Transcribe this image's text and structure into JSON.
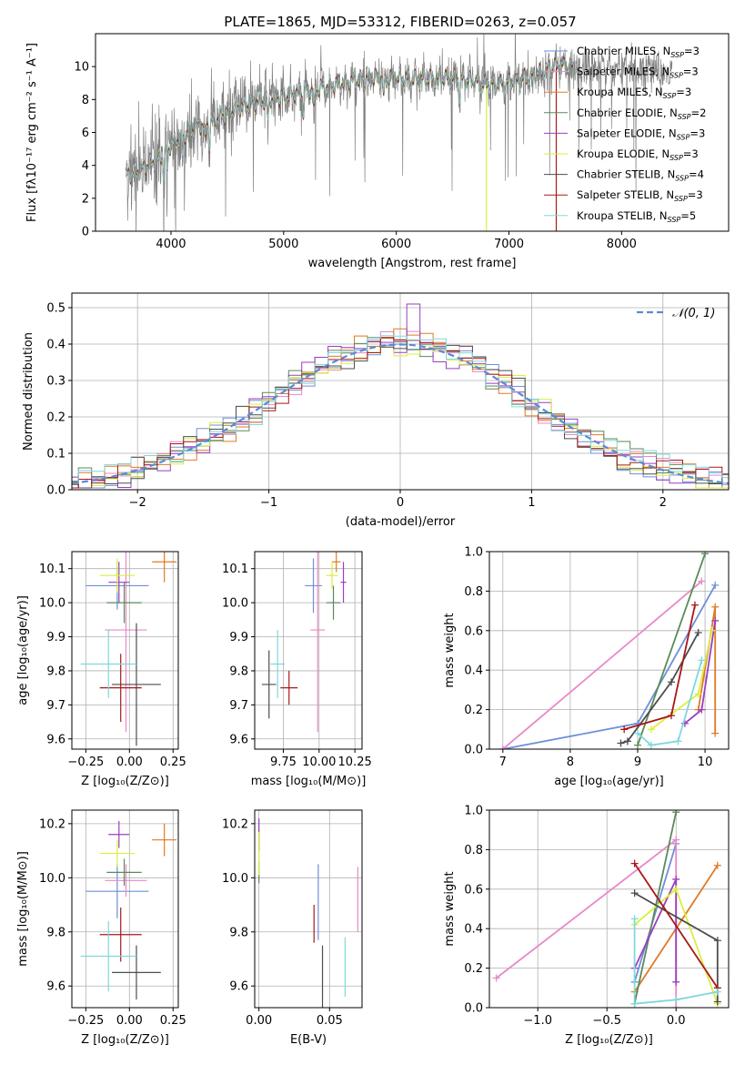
{
  "figure_title": "PLATE=1865, MJD=53312, FIBERID=0263, z=0.057",
  "colors": {
    "chabrier_miles": "#6f8fd8",
    "salpeter_miles": "#e889c7",
    "kroupa_miles": "#e07a25",
    "chabrier_elodie": "#5a8a5a",
    "salpeter_elodie": "#9a3fbf",
    "kroupa_elodie": "#d8ef3f",
    "chabrier_stelib": "#4d4d4d",
    "salpeter_stelib": "#a81818",
    "kroupa_stelib": "#7fd8dc",
    "data": "#808080",
    "gauss": "#5a8ad6",
    "grid": "#b0b0b0"
  },
  "legend_entries": [
    {
      "key": "chabrier_miles",
      "prefix": "Chabrier MILES, N",
      "sub": "SSP",
      "suffix": "=3"
    },
    {
      "key": "salpeter_miles",
      "prefix": "Salpeter MILES, N",
      "sub": "SSP",
      "suffix": "=3"
    },
    {
      "key": "kroupa_miles",
      "prefix": "Kroupa MILES, N",
      "sub": "SSP",
      "suffix": "=3"
    },
    {
      "key": "chabrier_elodie",
      "prefix": "Chabrier ELODIE, N",
      "sub": "SSP",
      "suffix": "=2"
    },
    {
      "key": "salpeter_elodie",
      "prefix": "Salpeter ELODIE, N",
      "sub": "SSP",
      "suffix": "=3"
    },
    {
      "key": "kroupa_elodie",
      "prefix": "Kroupa ELODIE, N",
      "sub": "SSP",
      "suffix": "=3"
    },
    {
      "key": "chabrier_stelib",
      "prefix": "Chabrier STELIB, N",
      "sub": "SSP",
      "suffix": "=4"
    },
    {
      "key": "salpeter_stelib",
      "prefix": "Salpeter STELIB, N",
      "sub": "SSP",
      "suffix": "=3"
    },
    {
      "key": "kroupa_stelib",
      "prefix": "Kroupa STELIB, N",
      "sub": "SSP",
      "suffix": "=5"
    }
  ],
  "chart_data": [
    {
      "id": "spectrum",
      "type": "line",
      "xlabel": "wavelength [Angstrom, rest frame]",
      "ylabel": "Flux [fλ10⁻¹⁷ erg cm⁻² s⁻¹ A⁻¹]",
      "xlim": [
        3330,
        8950
      ],
      "ylim": [
        0,
        12
      ],
      "xticks": [
        4000,
        5000,
        6000,
        7000,
        8000
      ],
      "yticks": [
        0,
        2,
        4,
        6,
        8,
        10
      ],
      "grid": false,
      "legend": "upper-right",
      "continuum": [
        [
          3600,
          3.4
        ],
        [
          3700,
          3.6
        ],
        [
          3800,
          4.0
        ],
        [
          3900,
          4.4
        ],
        [
          4000,
          5.3
        ],
        [
          4200,
          6.2
        ],
        [
          4400,
          6.8
        ],
        [
          4600,
          7.5
        ],
        [
          4800,
          7.9
        ],
        [
          5000,
          8.2
        ],
        [
          5200,
          8.5
        ],
        [
          5400,
          8.8
        ],
        [
          5600,
          9.1
        ],
        [
          5800,
          9.3
        ],
        [
          6000,
          9.3
        ],
        [
          6200,
          9.2
        ],
        [
          6400,
          9.3
        ],
        [
          6600,
          9.2
        ],
        [
          6800,
          8.9
        ],
        [
          7000,
          9.0
        ],
        [
          7200,
          9.4
        ],
        [
          7400,
          10.0
        ],
        [
          7600,
          10.0
        ],
        [
          7800,
          9.8
        ],
        [
          8000,
          9.8
        ],
        [
          8200,
          9.9
        ],
        [
          8400,
          9.6
        ],
        [
          8500,
          9.7
        ]
      ],
      "data_range": [
        3600,
        8450
      ],
      "model_range": [
        3600,
        7600
      ]
    },
    {
      "id": "residuals",
      "type": "histogram",
      "xlabel": "(data-model)/error",
      "ylabel": "Normed distribution",
      "xlim": [
        -2.5,
        2.5
      ],
      "ylim": [
        0,
        0.54
      ],
      "xticks": [
        -2,
        -1,
        0,
        1,
        2
      ],
      "yticks": [
        0.0,
        0.1,
        0.2,
        0.3,
        0.4,
        0.5
      ],
      "grid": true,
      "legend": "upper-right",
      "gauss_label": "𝒩(0, 1)",
      "bin_width": 0.1,
      "peak_bin": {
        "center": 0.15,
        "value": 0.51
      }
    },
    {
      "id": "age_vs_Z",
      "type": "errorbar",
      "xlabel": "Z [log₁₀(Z/Z⊙)]",
      "ylabel": "age  [log₁₀(age/yr)]",
      "xlim": [
        -0.33,
        0.28
      ],
      "ylim": [
        9.57,
        10.15
      ],
      "xticks": [
        -0.25,
        0.0,
        0.25
      ],
      "xticklabels": [
        "−0.25",
        "0.00",
        "0.25"
      ],
      "yticks": [
        9.6,
        9.7,
        9.8,
        9.9,
        10.0,
        10.1
      ],
      "grid": true,
      "points": [
        {
          "key": "chabrier_miles",
          "x": -0.07,
          "xerr": 0.18,
          "y": 10.05,
          "yerr": 0.07
        },
        {
          "key": "salpeter_miles",
          "x": -0.02,
          "xerr": 0.12,
          "y": 9.92,
          "yerr": 0.3
        },
        {
          "key": "kroupa_miles",
          "x": 0.2,
          "xerr": 0.07,
          "y": 10.12,
          "yerr": 0.06
        },
        {
          "key": "chabrier_elodie",
          "x": -0.03,
          "xerr": 0.1,
          "y": 10.0,
          "yerr": 0.06
        },
        {
          "key": "salpeter_elodie",
          "x": -0.06,
          "xerr": 0.06,
          "y": 10.06,
          "yerr": 0.06
        },
        {
          "key": "kroupa_elodie",
          "x": -0.07,
          "xerr": 0.1,
          "y": 10.08,
          "yerr": 0.05
        },
        {
          "key": "chabrier_stelib",
          "x": 0.04,
          "xerr": 0.14,
          "y": 9.76,
          "yerr": 0.18
        },
        {
          "key": "salpeter_stelib",
          "x": -0.05,
          "xerr": 0.12,
          "y": 9.75,
          "yerr": 0.1
        },
        {
          "key": "kroupa_stelib",
          "x": -0.12,
          "xerr": 0.16,
          "y": 9.82,
          "yerr": 0.1
        }
      ]
    },
    {
      "id": "age_vs_mass",
      "type": "errorbar",
      "xlabel": "mass [log₁₀(M/M⊙)]",
      "ylabel": "",
      "xlim": [
        9.55,
        10.3
      ],
      "ylim": [
        9.57,
        10.15
      ],
      "xticks": [
        9.75,
        10.0,
        10.25
      ],
      "xticklabels": [
        "9.75",
        "10.00",
        "10.25"
      ],
      "yticks": [
        9.6,
        9.7,
        9.8,
        9.9,
        10.0,
        10.1
      ],
      "grid": true,
      "points": [
        {
          "key": "chabrier_miles",
          "x": 9.96,
          "xerr": 0.06,
          "y": 10.05,
          "yerr": 0.08
        },
        {
          "key": "salpeter_miles",
          "x": 9.99,
          "xerr": 0.05,
          "y": 9.92,
          "yerr": 0.3
        },
        {
          "key": "kroupa_miles",
          "x": 10.12,
          "xerr": 0.03,
          "y": 10.12,
          "yerr": 0.03
        },
        {
          "key": "chabrier_elodie",
          "x": 10.1,
          "xerr": 0.05,
          "y": 10.0,
          "yerr": 0.05
        },
        {
          "key": "salpeter_elodie",
          "x": 10.17,
          "xerr": 0.02,
          "y": 10.06,
          "yerr": 0.06
        },
        {
          "key": "kroupa_elodie",
          "x": 10.09,
          "xerr": 0.04,
          "y": 10.08,
          "yerr": 0.04
        },
        {
          "key": "chabrier_stelib",
          "x": 9.65,
          "xerr": 0.05,
          "y": 9.76,
          "yerr": 0.1
        },
        {
          "key": "salpeter_stelib",
          "x": 9.79,
          "xerr": 0.06,
          "y": 9.75,
          "yerr": 0.05
        },
        {
          "key": "kroupa_stelib",
          "x": 9.71,
          "xerr": 0.05,
          "y": 9.82,
          "yerr": 0.1
        }
      ]
    },
    {
      "id": "weight_vs_age",
      "type": "line",
      "xlabel": "age  [log₁₀(age/yr)]",
      "ylabel": "mass weight",
      "xlim": [
        6.8,
        10.35
      ],
      "ylim": [
        0,
        1.0
      ],
      "xticks": [
        7,
        8,
        9,
        10
      ],
      "yticks": [
        0.0,
        0.2,
        0.4,
        0.6,
        0.8,
        1.0
      ],
      "grid": true,
      "series": [
        {
          "key": "chabrier_miles",
          "points": [
            [
              7.0,
              0.0
            ],
            [
              9.0,
              0.13
            ],
            [
              10.15,
              0.83
            ]
          ]
        },
        {
          "key": "salpeter_miles",
          "points": [
            [
              7.0,
              0.0
            ],
            [
              9.95,
              0.85
            ]
          ]
        },
        {
          "key": "kroupa_miles",
          "points": [
            [
              9.9,
              0.2
            ],
            [
              10.15,
              0.72
            ],
            [
              10.15,
              0.08
            ]
          ]
        },
        {
          "key": "chabrier_elodie",
          "points": [
            [
              9.0,
              0.02
            ],
            [
              10.0,
              0.99
            ]
          ]
        },
        {
          "key": "salpeter_elodie",
          "points": [
            [
              9.7,
              0.13
            ],
            [
              9.95,
              0.2
            ],
            [
              10.15,
              0.65
            ]
          ]
        },
        {
          "key": "kroupa_elodie",
          "points": [
            [
              9.2,
              0.1
            ],
            [
              9.9,
              0.28
            ],
            [
              10.1,
              0.6
            ]
          ]
        },
        {
          "key": "chabrier_stelib",
          "points": [
            [
              8.75,
              0.03
            ],
            [
              8.85,
              0.04
            ],
            [
              9.5,
              0.34
            ],
            [
              9.9,
              0.59
            ]
          ]
        },
        {
          "key": "salpeter_stelib",
          "points": [
            [
              8.8,
              0.1
            ],
            [
              9.5,
              0.17
            ],
            [
              9.85,
              0.73
            ]
          ]
        },
        {
          "key": "kroupa_stelib",
          "points": [
            [
              9.0,
              0.08
            ],
            [
              9.2,
              0.02
            ],
            [
              9.6,
              0.04
            ],
            [
              9.95,
              0.45
            ]
          ]
        }
      ]
    },
    {
      "id": "mass_vs_Z",
      "type": "errorbar",
      "xlabel": "Z [log₁₀(Z/Z⊙)]",
      "ylabel": "mass [log₁₀(M/M⊙)]",
      "xlim": [
        -0.33,
        0.28
      ],
      "ylim": [
        9.52,
        10.25
      ],
      "xticks": [
        -0.25,
        0.0,
        0.25
      ],
      "xticklabels": [
        "−0.25",
        "0.00",
        "0.25"
      ],
      "yticks": [
        9.6,
        9.8,
        10.0,
        10.2
      ],
      "grid": true,
      "points": [
        {
          "key": "chabrier_miles",
          "x": -0.07,
          "xerr": 0.18,
          "y": 9.95,
          "yerr": 0.1
        },
        {
          "key": "salpeter_miles",
          "x": -0.02,
          "xerr": 0.12,
          "y": 9.99,
          "yerr": 0.06
        },
        {
          "key": "kroupa_miles",
          "x": 0.2,
          "xerr": 0.07,
          "y": 10.14,
          "yerr": 0.06
        },
        {
          "key": "chabrier_elodie",
          "x": -0.03,
          "xerr": 0.1,
          "y": 10.02,
          "yerr": 0.05
        },
        {
          "key": "salpeter_elodie",
          "x": -0.06,
          "xerr": 0.06,
          "y": 10.16,
          "yerr": 0.05
        },
        {
          "key": "kroupa_elodie",
          "x": -0.07,
          "xerr": 0.1,
          "y": 10.09,
          "yerr": 0.05
        },
        {
          "key": "chabrier_stelib",
          "x": 0.04,
          "xerr": 0.14,
          "y": 9.65,
          "yerr": 0.1
        },
        {
          "key": "salpeter_stelib",
          "x": -0.05,
          "xerr": 0.12,
          "y": 9.79,
          "yerr": 0.1
        },
        {
          "key": "kroupa_stelib",
          "x": -0.12,
          "xerr": 0.16,
          "y": 9.71,
          "yerr": 0.13
        }
      ]
    },
    {
      "id": "mass_vs_ebv",
      "type": "errorbar",
      "xlabel": "E(B-V)",
      "ylabel": "",
      "xlim": [
        -0.003,
        0.073
      ],
      "ylim": [
        9.52,
        10.25
      ],
      "xticks": [
        0.0,
        0.05
      ],
      "xticklabels": [
        "0.00",
        "0.05"
      ],
      "yticks": [
        9.6,
        9.8,
        10.0,
        10.2
      ],
      "grid": true,
      "points": [
        {
          "key": "chabrier_miles",
          "x": 0.042,
          "xerr": 0,
          "y": 9.91,
          "yerr": 0.14
        },
        {
          "key": "salpeter_miles",
          "x": 0.07,
          "xerr": 0,
          "y": 9.92,
          "yerr": 0.12
        },
        {
          "key": "kroupa_miles",
          "x": 0.0,
          "xerr": 0,
          "y": 10.14,
          "yerr": 0.04
        },
        {
          "key": "chabrier_elodie",
          "x": 0.0,
          "xerr": 0,
          "y": 10.02,
          "yerr": 0.04
        },
        {
          "key": "salpeter_elodie",
          "x": 0.0,
          "xerr": 0,
          "y": 10.16,
          "yerr": 0.06
        },
        {
          "key": "kroupa_elodie",
          "x": 0.0,
          "xerr": 0,
          "y": 10.09,
          "yerr": 0.08
        },
        {
          "key": "chabrier_stelib",
          "x": 0.045,
          "xerr": 0,
          "y": 9.6,
          "yerr": 0.15
        },
        {
          "key": "salpeter_stelib",
          "x": 0.039,
          "xerr": 0,
          "y": 9.83,
          "yerr": 0.07
        },
        {
          "key": "kroupa_stelib",
          "x": 0.061,
          "xerr": 0,
          "y": 9.67,
          "yerr": 0.11
        }
      ]
    },
    {
      "id": "weight_vs_Z",
      "type": "line",
      "xlabel": "Z [log₁₀(Z/Z⊙)]",
      "ylabel": "mass weight",
      "xlim": [
        -1.35,
        0.38
      ],
      "ylim": [
        0,
        1.0
      ],
      "xticks": [
        -1.0,
        -0.5,
        0.0
      ],
      "xticklabels": [
        "−1.0",
        "−0.5",
        "0.0"
      ],
      "yticks": [
        0.0,
        0.2,
        0.4,
        0.6,
        0.8,
        1.0
      ],
      "grid": true,
      "series": [
        {
          "key": "chabrier_miles",
          "points": [
            [
              -0.3,
              0.13
            ],
            [
              0.0,
              0.83
            ]
          ]
        },
        {
          "key": "salpeter_miles",
          "points": [
            [
              -1.3,
              0.15
            ],
            [
              0.0,
              0.85
            ],
            [
              0.0,
              0.0
            ]
          ]
        },
        {
          "key": "kroupa_miles",
          "points": [
            [
              -0.3,
              0.08
            ],
            [
              0.3,
              0.72
            ]
          ]
        },
        {
          "key": "chabrier_elodie",
          "points": [
            [
              -0.3,
              0.02
            ],
            [
              0.0,
              0.99
            ]
          ]
        },
        {
          "key": "salpeter_elodie",
          "points": [
            [
              -0.3,
              0.2
            ],
            [
              0.0,
              0.65
            ],
            [
              0.0,
              0.13
            ]
          ]
        },
        {
          "key": "kroupa_elodie",
          "points": [
            [
              -0.3,
              0.42
            ],
            [
              0.0,
              0.6
            ],
            [
              0.3,
              0.02
            ]
          ]
        },
        {
          "key": "chabrier_stelib",
          "points": [
            [
              -0.3,
              0.58
            ],
            [
              0.3,
              0.34
            ],
            [
              0.3,
              0.03
            ]
          ]
        },
        {
          "key": "salpeter_stelib",
          "points": [
            [
              -0.3,
              0.73
            ],
            [
              0.3,
              0.1
            ]
          ]
        },
        {
          "key": "kroupa_stelib",
          "points": [
            [
              -0.3,
              0.45
            ],
            [
              -0.3,
              0.02
            ],
            [
              0.0,
              0.04
            ],
            [
              0.3,
              0.08
            ]
          ]
        }
      ]
    }
  ]
}
